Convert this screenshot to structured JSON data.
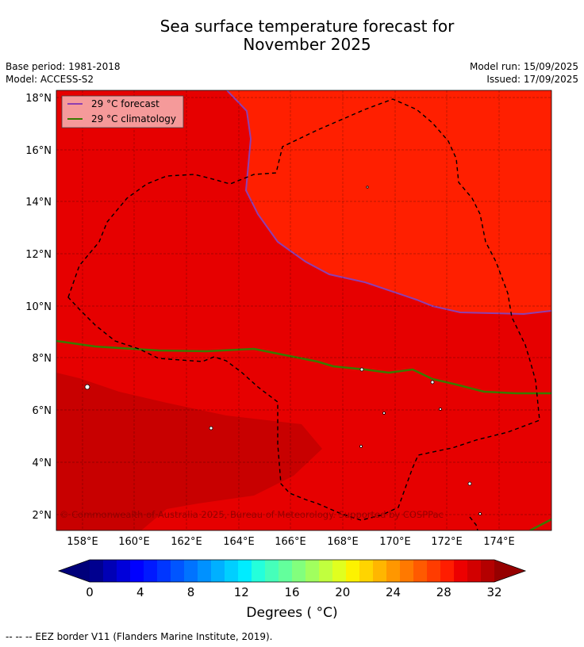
{
  "header": {
    "title_line1": "Sea surface temperature forecast for",
    "title_line2": "November 2025",
    "base_period": "Base period: 1981-2018",
    "model": "Model: ACCESS-S2",
    "model_run": "Model run: 15/09/2025",
    "issued": "Issued: 17/09/2025"
  },
  "map": {
    "lon_ticks": [
      "158°E",
      "160°E",
      "162°E",
      "164°E",
      "166°E",
      "168°E",
      "170°E",
      "172°E",
      "174°E"
    ],
    "lat_ticks": [
      "18°N",
      "16°N",
      "14°N",
      "12°N",
      "10°N",
      "8°N",
      "6°N",
      "4°N",
      "2°N"
    ],
    "legend": {
      "forecast_label": "29 °C  forecast",
      "climatology_label": "29 °C  climatology",
      "forecast_color": "#8e3fb0",
      "climatology_color": "#3a7a00"
    },
    "copyright": "© Commonwealth of Australia 2025, Bureau of Meteorology. Supported by COSPPac",
    "colors": {
      "warmest": "#ff1f00",
      "warm": "#e60000",
      "hot": "#c80000"
    }
  },
  "colorbar": {
    "tick_labels": [
      "0",
      "4",
      "8",
      "12",
      "16",
      "20",
      "24",
      "28",
      "32"
    ],
    "label": "Degrees ( °C)",
    "colors": [
      "#00008f",
      "#0000b5",
      "#0000da",
      "#0000ff",
      "#0019ff",
      "#0036ff",
      "#0055ff",
      "#0073ff",
      "#0091ff",
      "#00b0ff",
      "#00cfff",
      "#00ecff",
      "#24ffdb",
      "#45ffba",
      "#63ff9c",
      "#82ff7d",
      "#a1ff5e",
      "#c1ff3e",
      "#e0ff1f",
      "#fdf200",
      "#ffd400",
      "#ffb600",
      "#ff9700",
      "#ff7900",
      "#ff5a00",
      "#ff3c00",
      "#ff1d00",
      "#ed0000",
      "#d20000",
      "#b40000"
    ],
    "under_color": "#00007a",
    "over_color": "#960000"
  },
  "footer": {
    "eez_note": "--  --  -- EEZ border V11 (Flanders Marine Institute, 2019)."
  }
}
